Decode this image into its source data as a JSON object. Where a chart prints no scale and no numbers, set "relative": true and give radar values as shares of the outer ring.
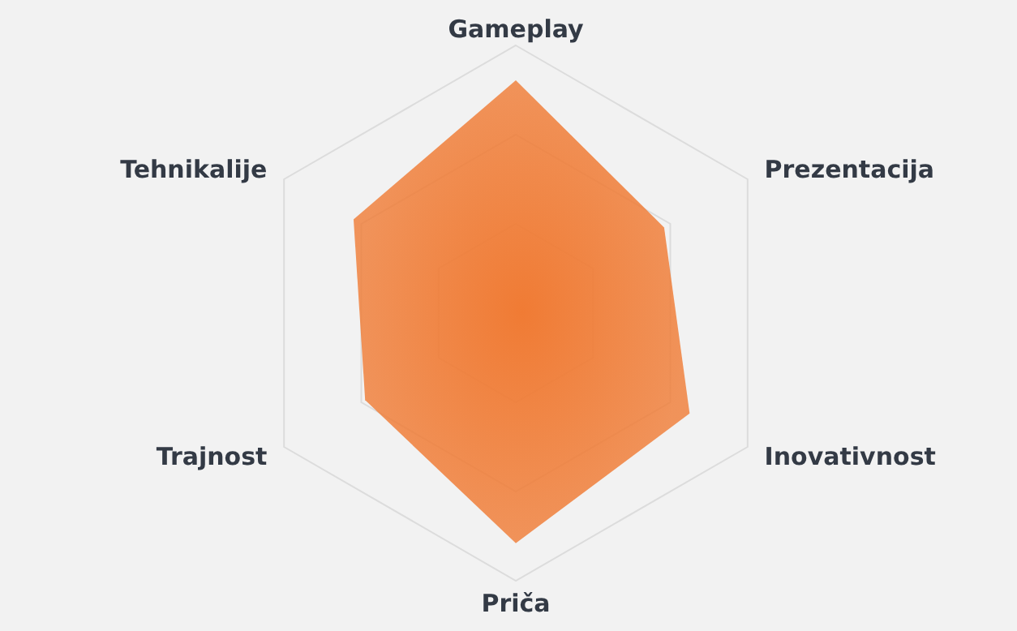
{
  "chart_data": {
    "type": "radar",
    "relative": true,
    "grid": true,
    "categories": [
      "Gameplay",
      "Prezentacija",
      "Inovativnost",
      "Priča",
      "Trajnost",
      "Tehnikalije"
    ],
    "series": [
      {
        "color": "#f07b34",
        "values": [
          0.87,
          0.64,
          0.75,
          0.86,
          0.65,
          0.7
        ]
      }
    ]
  }
}
